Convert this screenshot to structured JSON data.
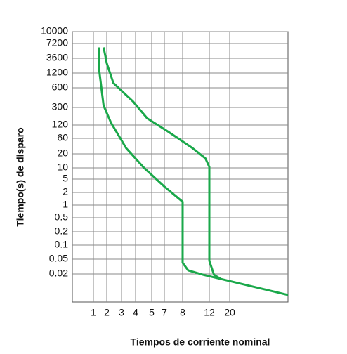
{
  "chart_data": {
    "type": "line",
    "x_label": "Tiempos de corriente nominal",
    "y_label": "Tiempo(s) de disparo",
    "log_scale": true,
    "grid": true,
    "xlim": [
      0.33,
      86
    ],
    "xticks": [
      1,
      2,
      3,
      4,
      5,
      7,
      8,
      12,
      20
    ],
    "ylim": [
      0.004,
      10000
    ],
    "yticks": [
      0.02,
      0.05,
      0.1,
      0.2,
      0.5,
      1,
      2,
      5,
      10,
      20,
      60,
      120,
      300,
      600,
      1200,
      3600,
      7200,
      10000
    ],
    "series": [
      {
        "color": "#1aa84a",
        "x": [
          1.35,
          1.35,
          1.7,
          2.25,
          3.3,
          4.5,
          7,
          8,
          8,
          8.7,
          11,
          86
        ],
        "values": [
          6000,
          1500,
          320,
          135,
          30,
          10,
          3,
          1.2,
          0.04,
          0.025,
          0.019,
          0.006
        ]
      },
      {
        "color": "#1aa84a",
        "x": [
          1.7,
          2,
          2.4,
          3.8,
          4.7,
          7.2,
          9.3,
          11.3,
          12,
          12,
          13.5,
          16
        ],
        "values": [
          6000,
          2500,
          750,
          370,
          170,
          85,
          30,
          16,
          10.5,
          0.045,
          0.019,
          0.015
        ]
      }
    ]
  }
}
